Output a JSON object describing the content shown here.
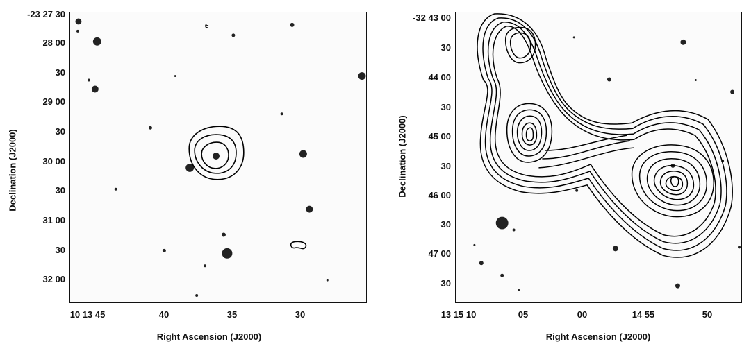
{
  "figure": {
    "left_panel": {
      "y_ticks": [
        "-23 27 30",
        "28 00",
        "30",
        "29 00",
        "30",
        "30 00",
        "30",
        "31 00",
        "30",
        "32 00"
      ],
      "x_ticks": [
        "10 13 45",
        "40",
        "35",
        "30"
      ],
      "ylabel": "Declination (J2000)",
      "xlabel": "Right Ascension (J2000)"
    },
    "right_panel": {
      "y_ticks": [
        "-32 43 00",
        "30",
        "44 00",
        "30",
        "45 00",
        "30",
        "46 00",
        "30",
        "47 00",
        "30"
      ],
      "x_ticks": [
        "13 15 10",
        "05",
        "00",
        "14 55",
        "50"
      ],
      "ylabel": "Declination (J2000)",
      "xlabel": "Right Ascension (J2000)"
    }
  }
}
